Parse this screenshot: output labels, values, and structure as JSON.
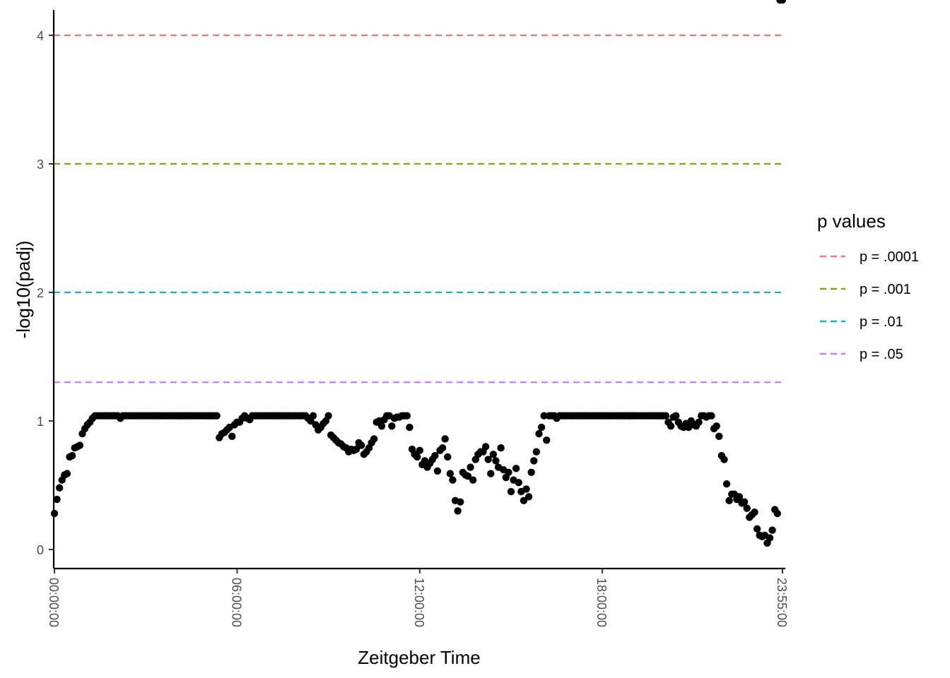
{
  "chart_data": {
    "type": "scatter",
    "xlabel": "Zeitgeber Time",
    "ylabel": "-log10(padj)",
    "x_ticks": [
      "00:00:00",
      "06:00:00",
      "12:00:00",
      "18:00:00",
      "23:55:00"
    ],
    "x_tick_minutes": [
      0,
      360,
      720,
      1080,
      1435
    ],
    "xlim_minutes": [
      0,
      1435
    ],
    "y_ticks": [
      0,
      1,
      2,
      3,
      4
    ],
    "ylim": [
      -0.15,
      4.2
    ],
    "grid": false,
    "legend": {
      "title": "p values",
      "placement": "right",
      "items": [
        {
          "label": "p = .0001",
          "y": 4,
          "color": "#F8766D"
        },
        {
          "label": "p = .001",
          "y": 3,
          "color": "#7CAE00"
        },
        {
          "label": "p = .01",
          "y": 2,
          "color": "#00BFC4"
        },
        {
          "label": "p = .05",
          "y": 1.30103,
          "color": "#C77CFF"
        }
      ]
    },
    "point_color": "#000000",
    "points_x_minutes": [
      0,
      5,
      10,
      15,
      20,
      25,
      30,
      35,
      40,
      45,
      50,
      55,
      60,
      65,
      70,
      75,
      80,
      85,
      90,
      95,
      100,
      105,
      110,
      115,
      120,
      125,
      130,
      135,
      140,
      145,
      150,
      155,
      160,
      165,
      170,
      175,
      180,
      185,
      190,
      195,
      200,
      205,
      210,
      215,
      220,
      225,
      230,
      235,
      240,
      245,
      250,
      255,
      260,
      265,
      270,
      275,
      280,
      285,
      290,
      295,
      300,
      305,
      310,
      315,
      320,
      325,
      330,
      335,
      340,
      345,
      350,
      355,
      360,
      365,
      370,
      375,
      380,
      385,
      390,
      395,
      400,
      405,
      410,
      415,
      420,
      425,
      430,
      435,
      440,
      445,
      450,
      455,
      460,
      465,
      470,
      475,
      480,
      485,
      490,
      495,
      500,
      505,
      510,
      515,
      520,
      525,
      530,
      535,
      540,
      545,
      550,
      555,
      560,
      565,
      570,
      575,
      580,
      585,
      590,
      595,
      600,
      605,
      610,
      615,
      620,
      625,
      630,
      635,
      640,
      645,
      650,
      655,
      660,
      665,
      670,
      675,
      680,
      685,
      690,
      695,
      700,
      705,
      710,
      715,
      720,
      725,
      730,
      735,
      740,
      745,
      750,
      755,
      760,
      765,
      770,
      775,
      780,
      785,
      790,
      795,
      800,
      805,
      810,
      815,
      820,
      825,
      830,
      835,
      840,
      845,
      850,
      855,
      860,
      865,
      870,
      875,
      880,
      885,
      890,
      895,
      900,
      905,
      910,
      915,
      920,
      925,
      930,
      935,
      940,
      945,
      950,
      955,
      960,
      965,
      970,
      975,
      980,
      985,
      990,
      995,
      1000,
      1005,
      1010,
      1015,
      1020,
      1025,
      1030,
      1035,
      1040,
      1045,
      1050,
      1055,
      1060,
      1065,
      1070,
      1075,
      1080,
      1085,
      1090,
      1095,
      1100,
      1105,
      1110,
      1115,
      1120,
      1125,
      1130,
      1135,
      1140,
      1145,
      1150,
      1155,
      1160,
      1165,
      1170,
      1175,
      1180,
      1185,
      1190,
      1195,
      1200,
      1205,
      1210,
      1215,
      1220,
      1225,
      1230,
      1235,
      1240,
      1245,
      1250,
      1255,
      1260,
      1265,
      1270,
      1275,
      1280,
      1285,
      1290,
      1295,
      1300,
      1305,
      1310,
      1315,
      1320,
      1325,
      1330,
      1335,
      1340,
      1345,
      1350,
      1355,
      1360,
      1365,
      1370,
      1375,
      1380,
      1385,
      1390,
      1395,
      1400,
      1405,
      1410,
      1415,
      1420,
      1425,
      1430,
      1435
    ],
    "points_y": [
      0.28,
      0.39,
      0.48,
      0.54,
      0.58,
      0.59,
      0.72,
      0.73,
      0.79,
      0.8,
      0.81,
      0.9,
      0.94,
      0.97,
      0.99,
      1.02,
      1.04,
      1.04,
      1.04,
      1.04,
      1.04,
      1.04,
      1.04,
      1.04,
      1.04,
      1.04,
      1.02,
      1.04,
      1.04,
      1.04,
      1.04,
      1.04,
      1.04,
      1.04,
      1.04,
      1.04,
      1.04,
      1.04,
      1.04,
      1.04,
      1.04,
      1.04,
      1.04,
      1.04,
      1.04,
      1.04,
      1.04,
      1.04,
      1.04,
      1.04,
      1.04,
      1.04,
      1.04,
      1.04,
      1.04,
      1.04,
      1.04,
      1.04,
      1.04,
      1.04,
      1.04,
      1.04,
      1.04,
      1.04,
      1.04,
      0.87,
      0.9,
      0.91,
      0.93,
      0.95,
      0.88,
      0.97,
      0.99,
      0.99,
      1.02,
      1.04,
      1.02,
      1.01,
      1.04,
      1.04,
      1.04,
      1.04,
      1.04,
      1.04,
      1.04,
      1.04,
      1.04,
      1.04,
      1.04,
      1.04,
      1.04,
      1.04,
      1.04,
      1.04,
      1.04,
      1.04,
      1.04,
      1.04,
      1.04,
      1.04,
      1.02,
      1.0,
      1.04,
      0.97,
      0.93,
      0.95,
      0.98,
      1.0,
      1.04,
      0.89,
      0.87,
      0.85,
      0.83,
      0.82,
      0.8,
      0.79,
      0.76,
      0.78,
      0.77,
      0.78,
      0.83,
      0.81,
      0.74,
      0.76,
      0.79,
      0.83,
      0.86,
      0.99,
      1.0,
      0.96,
      1.01,
      1.04,
      1.04,
      0.96,
      1.02,
      1.03,
      1.03,
      1.04,
      1.04,
      1.04,
      0.95,
      0.78,
      0.74,
      0.72,
      0.77,
      0.66,
      0.69,
      0.64,
      0.67,
      0.7,
      0.73,
      0.61,
      0.77,
      0.79,
      0.86,
      0.72,
      0.59,
      0.54,
      0.38,
      0.3,
      0.37,
      0.6,
      0.58,
      0.57,
      0.64,
      0.54,
      0.7,
      0.74,
      0.76,
      0.76,
      0.8,
      0.7,
      0.59,
      0.74,
      0.69,
      0.64,
      0.79,
      0.62,
      0.56,
      0.6,
      0.45,
      0.54,
      0.63,
      0.52,
      0.45,
      0.38,
      0.47,
      0.41,
      0.6,
      0.69,
      0.76,
      0.9,
      0.95,
      1.04,
      0.85,
      1.04,
      1.04,
      1.04,
      1.02,
      1.04,
      1.04,
      1.04,
      1.04,
      1.04,
      1.04,
      1.04,
      1.04,
      1.04,
      1.04,
      1.04,
      1.04,
      1.04,
      1.04,
      1.04,
      1.04,
      1.04,
      1.04,
      1.04,
      1.04,
      1.04,
      1.04,
      1.04,
      1.04,
      1.04,
      1.04,
      1.04,
      1.04,
      1.04,
      1.04,
      1.04,
      1.04,
      1.04,
      1.04,
      1.04,
      1.04,
      1.04,
      1.04,
      1.04,
      1.04,
      1.04,
      1.04,
      1.04,
      0.99,
      0.96,
      1.03,
      1.04,
      0.99,
      0.96,
      0.95,
      0.98,
      0.95,
      1.0,
      0.97,
      0.96,
      0.99,
      1.04,
      1.04,
      1.03,
      1.04,
      1.04,
      0.94,
      0.96,
      0.88,
      0.73,
      0.7,
      0.51,
      0.38,
      0.43,
      0.43,
      0.39,
      0.41,
      0.36,
      0.37,
      0.32,
      0.25,
      0.27,
      0.29,
      0.16,
      0.11,
      0.1,
      0.11,
      0.05,
      0.09,
      0.15,
      0.31,
      0.28
    ]
  }
}
